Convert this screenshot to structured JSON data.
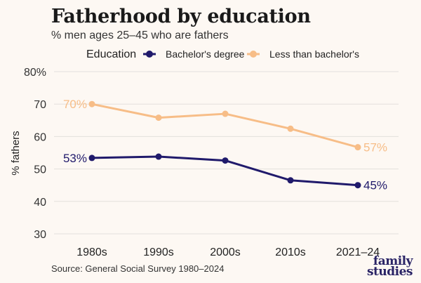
{
  "title": "Fatherhood by education",
  "subtitle": "% men ages 25–45 who are fathers",
  "source": "Source: General Social Survey 1980–2024",
  "logo": {
    "line1": "family",
    "line2": "studies"
  },
  "colors": {
    "bachelors": "#201a6b",
    "less": "#f7bd87",
    "grid": "#e3e0dc",
    "background": "#fdf8f3"
  },
  "chart_data": {
    "type": "line",
    "title": "Fatherhood by education",
    "subtitle": "% men ages 25–45 who are fathers",
    "ylabel": "% fathers",
    "xlabel": "",
    "categories": [
      "1980s",
      "1990s",
      "2000s",
      "2010s",
      "2021–24"
    ],
    "ylim": [
      30,
      80
    ],
    "yticks": [
      30,
      40,
      50,
      60,
      70,
      80
    ],
    "ytick_labels": [
      "30",
      "40",
      "50",
      "60",
      "70",
      "80%"
    ],
    "grid": true,
    "legend": {
      "title": "Education",
      "placement": "top"
    },
    "series": [
      {
        "name": "Bachelor's degree",
        "color": "#201a6b",
        "values": [
          53.4,
          53.8,
          52.6,
          46.5,
          45.0
        ],
        "start_label": "53%",
        "end_label": "45%"
      },
      {
        "name": "Less than bachelor's",
        "color": "#f7bd87",
        "values": [
          70.0,
          65.8,
          67.0,
          62.4,
          56.7
        ],
        "start_label": "70%",
        "end_label": "57%"
      }
    ]
  }
}
